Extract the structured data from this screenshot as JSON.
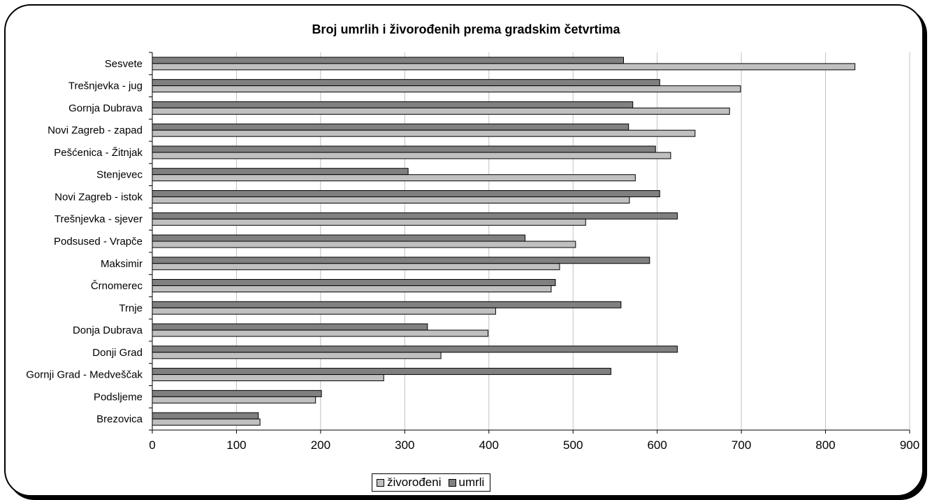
{
  "chart_data": {
    "type": "bar",
    "orientation": "horizontal",
    "title": "Broj umrlih i živorođenih prema gradskim četvrtima",
    "xlabel": "",
    "ylabel": "",
    "xlim": [
      0,
      900
    ],
    "x_ticks": [
      0,
      100,
      200,
      300,
      400,
      500,
      600,
      700,
      800,
      900
    ],
    "grid": true,
    "legend_position": "bottom",
    "categories": [
      "Sesvete",
      "Trešnjevka - jug",
      "Gornja Dubrava",
      "Novi Zagreb - zapad",
      "Pešćenica - Žitnjak",
      "Stenjevec",
      "Novi Zagreb - istok",
      "Trešnjevka - sjever",
      "Podsused - Vrapče",
      "Maksimir",
      "Črnomerec",
      "Trnje",
      "Donja Dubrava",
      "Donji Grad",
      "Gornji Grad - Medveščak",
      "Podsljeme",
      "Brezovica"
    ],
    "series": [
      {
        "name": "živorođeni",
        "color": "#c0c0c0",
        "values": [
          835,
          699,
          686,
          645,
          616,
          574,
          567,
          515,
          503,
          484,
          474,
          408,
          399,
          343,
          275,
          194,
          128
        ]
      },
      {
        "name": "umrli",
        "color": "#808080",
        "values": [
          560,
          603,
          571,
          566,
          598,
          304,
          603,
          624,
          443,
          591,
          479,
          557,
          327,
          624,
          545,
          201,
          126
        ]
      }
    ]
  }
}
